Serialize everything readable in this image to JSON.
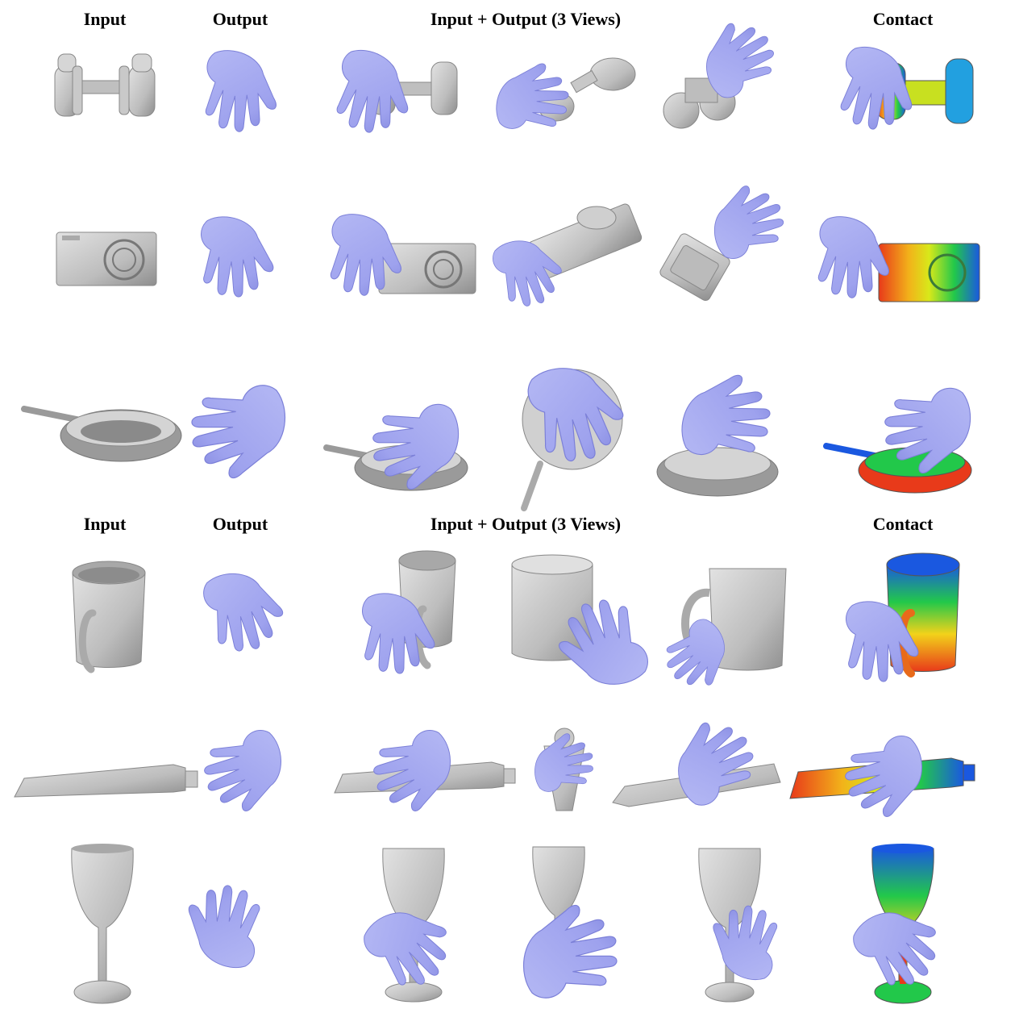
{
  "headers": {
    "top": {
      "input": "Input",
      "output": "Output",
      "views": "Input + Output (3 Views)",
      "contact": "Contact"
    },
    "bottom": {
      "input": "Input",
      "output": "Output",
      "views": "Input + Output (3 Views)",
      "contact": "Contact"
    }
  },
  "rows": [
    {
      "object": "binoculars"
    },
    {
      "object": "camera"
    },
    {
      "object": "frying-pan"
    },
    {
      "object": "mug"
    },
    {
      "object": "toothpaste-tube"
    },
    {
      "object": "wine-glass"
    }
  ],
  "colors": {
    "hand": "#9ea2ee",
    "hand_shade": "#7c80d8",
    "object": "#c8c8c8",
    "object_shade": "#9a9a9a",
    "contact_high": "#e83a1a",
    "contact_mid": "#f2e01a",
    "contact_low": "#22c84a",
    "contact_none": "#1a58e0"
  }
}
